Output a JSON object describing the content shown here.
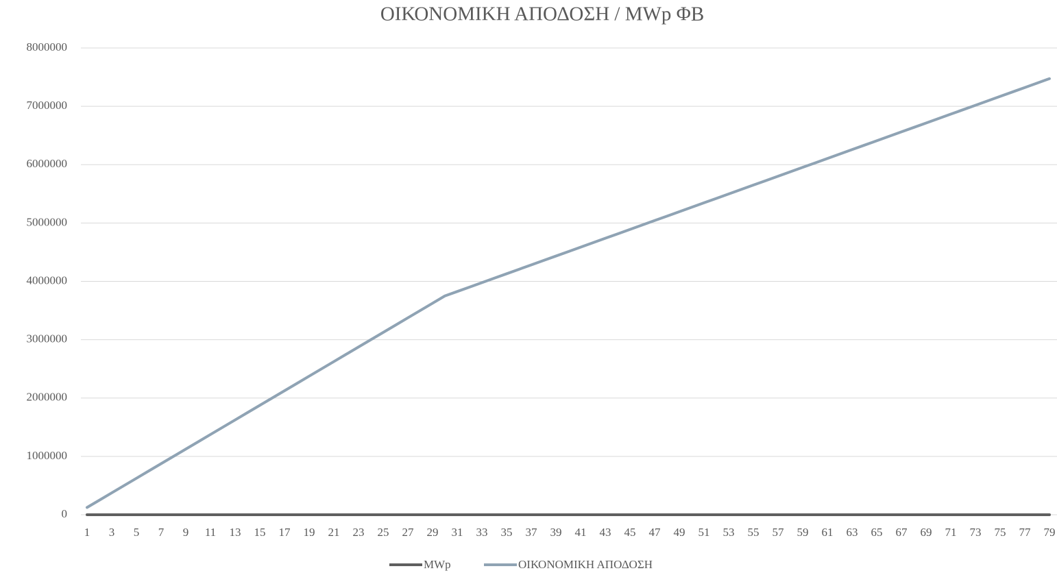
{
  "chart_data": {
    "type": "line",
    "title": "ΟΙΚΟΝΟΜΙΚΗ ΑΠΟΔΟΣΗ / MWp ΦΒ",
    "categories": [
      1,
      null,
      3,
      null,
      5,
      null,
      7,
      null,
      9,
      null,
      11,
      null,
      13,
      null,
      15,
      null,
      17,
      null,
      19,
      null,
      21,
      null,
      23,
      null,
      25,
      null,
      27,
      null,
      29,
      null,
      31,
      null,
      33,
      null,
      35,
      null,
      37,
      null,
      39,
      null,
      41,
      null,
      43,
      null,
      45,
      null,
      47,
      null,
      49,
      null,
      51,
      null,
      53,
      null,
      55,
      null,
      57,
      null,
      59,
      null,
      61,
      null,
      63,
      null,
      65,
      null,
      67,
      null,
      69,
      null,
      71,
      null,
      73,
      null,
      75,
      null,
      77,
      null,
      79
    ],
    "series": [
      {
        "name": "MWp",
        "color": "#5f5f5f",
        "values": [
          1,
          1,
          1,
          1,
          1,
          1,
          1,
          1,
          1,
          1,
          1,
          1,
          1,
          1,
          1,
          1,
          1,
          1,
          1,
          1,
          1,
          1,
          1,
          1,
          1,
          1,
          1,
          1,
          1,
          1,
          1,
          1,
          1,
          1,
          1,
          1,
          1,
          1,
          1,
          1,
          1,
          1,
          1,
          1,
          1,
          1,
          1,
          1,
          1,
          1,
          1,
          1,
          1,
          1,
          1,
          1,
          1,
          1,
          1,
          1,
          1,
          1,
          1,
          1,
          1,
          1,
          1,
          1,
          1,
          1,
          1,
          1,
          1,
          1,
          1,
          1,
          1,
          1,
          1
        ]
      },
      {
        "name": "ΟΙΚΟΝΟΜΙΚΗ ΑΠΟΔΟΣΗ",
        "color": "#8fa3b4",
        "values": [
          125000,
          250000,
          375000,
          500000,
          625000,
          750000,
          875000,
          1000000,
          1125000,
          1250000,
          1375000,
          1500000,
          1625000,
          1750000,
          1875000,
          2000000,
          2125000,
          2250000,
          2375000,
          2500000,
          2625000,
          2750000,
          2875000,
          3000000,
          3125000,
          3250000,
          3375000,
          3500000,
          3625000,
          3750000,
          3826000,
          3902000,
          3978000,
          4054000,
          4130000,
          4206000,
          4282000,
          4358000,
          4434000,
          4510000,
          4586000,
          4662000,
          4738000,
          4814000,
          4890000,
          4966000,
          5042000,
          5118000,
          5194000,
          5270000,
          5346000,
          5422000,
          5498000,
          5574000,
          5650000,
          5726000,
          5802000,
          5878000,
          5954000,
          6030000,
          6106000,
          6182000,
          6258000,
          6334000,
          6410000,
          6486000,
          6562000,
          6638000,
          6714000,
          6790000,
          6866000,
          6942000,
          7018000,
          7094000,
          7170000,
          7246000,
          7322000,
          7398000,
          7474000
        ]
      }
    ],
    "ylim": [
      0,
      8000000
    ],
    "yticks": [
      0,
      1000000,
      2000000,
      3000000,
      4000000,
      5000000,
      6000000,
      7000000,
      8000000
    ],
    "grid": true,
    "legend": "bottom"
  }
}
